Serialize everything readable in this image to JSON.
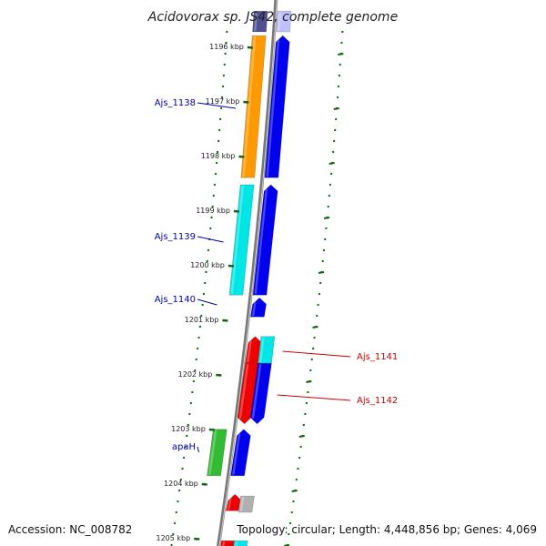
{
  "title": "Acidovorax sp. JS42, complete genome",
  "footer": {
    "accession": "Accession: NC_008782",
    "topology": "Topology: circular; Length: 4,448,856 bp; Genes: 4,069"
  },
  "ruler": [
    "1196 kbp",
    "1197 kbp",
    "1198 kbp",
    "1199 kbp",
    "1200 kbp",
    "1201 kbp",
    "1202 kbp",
    "1203 kbp",
    "1204 kbp",
    "1205 kbp"
  ],
  "colors": {
    "blue": "#0000ee",
    "red": "#ee0000",
    "orange": "#ff9900",
    "cyan": "#00e5e5",
    "green": "#33bb33",
    "gray": "#b0b0b0",
    "lavender": "#c0c0ff",
    "navy": "#505090",
    "tick": "#116611"
  },
  "features": [
    {
      "name": "",
      "color": "navy",
      "strand": "left",
      "start": 1195.37,
      "end": 1195.75,
      "arrow": "none"
    },
    {
      "name": "",
      "color": "lavender",
      "strand": "right",
      "start": 1195.37,
      "end": 1195.75,
      "arrow": "none"
    },
    {
      "name": "",
      "color": "orange",
      "strand": "left",
      "start": 1195.82,
      "end": 1198.42,
      "arrow": "none"
    },
    {
      "name": "",
      "color": "blue",
      "strand": "right",
      "start": 1195.82,
      "end": 1198.42,
      "arrow": "up"
    },
    {
      "name": "",
      "color": "cyan",
      "strand": "left",
      "start": 1198.55,
      "end": 1200.57,
      "arrow": "none"
    },
    {
      "name": "",
      "color": "blue",
      "strand": "right",
      "start": 1198.55,
      "end": 1200.57,
      "arrow": "up"
    },
    {
      "name": "",
      "color": "blue",
      "strand": "right",
      "start": 1200.62,
      "end": 1200.97,
      "arrow": "up"
    },
    {
      "name": "",
      "color": "red",
      "strand": "right",
      "start": 1201.33,
      "end": 1201.82,
      "arrow": "up"
    },
    {
      "name": "",
      "color": "cyan",
      "strand": "far",
      "start": 1201.33,
      "end": 1201.82,
      "arrow": "none"
    },
    {
      "name": "",
      "color": "red",
      "strand": "right",
      "start": 1201.82,
      "end": 1202.93,
      "arrow": "down"
    },
    {
      "name": "",
      "color": "blue",
      "strand": "far",
      "start": 1201.82,
      "end": 1202.93,
      "arrow": "down"
    },
    {
      "name": "",
      "color": "green",
      "strand": "left",
      "start": 1203.03,
      "end": 1203.88,
      "arrow": "none"
    },
    {
      "name": "",
      "color": "blue",
      "strand": "right",
      "start": 1203.03,
      "end": 1203.88,
      "arrow": "up"
    },
    {
      "name": "",
      "color": "red",
      "strand": "right",
      "start": 1204.22,
      "end": 1204.52,
      "arrow": "up"
    },
    {
      "name": "",
      "color": "gray",
      "strand": "far",
      "start": 1204.25,
      "end": 1204.55,
      "arrow": "none"
    },
    {
      "name": "",
      "color": "red",
      "strand": "right",
      "start": 1205.07,
      "end": 1205.2,
      "arrow": "none"
    },
    {
      "name": "",
      "color": "cyan",
      "strand": "far",
      "start": 1205.07,
      "end": 1205.2,
      "arrow": "none"
    }
  ],
  "labels": [
    {
      "text": "Ajs_1138",
      "side": "left",
      "at": 1197.15,
      "color": "#0000aa"
    },
    {
      "text": "Ajs_1139",
      "side": "left",
      "at": 1199.6,
      "color": "#0000aa"
    },
    {
      "text": "Ajs_1140",
      "side": "left",
      "at": 1200.75,
      "color": "#0000aa"
    },
    {
      "text": "apaH",
      "side": "left",
      "at": 1203.45,
      "color": "#0000aa"
    },
    {
      "text": "Ajs_1141",
      "side": "right",
      "at": 1201.6,
      "color": "#cc0000"
    },
    {
      "text": "Ajs_1142",
      "side": "right",
      "at": 1202.4,
      "color": "#cc0000"
    }
  ]
}
